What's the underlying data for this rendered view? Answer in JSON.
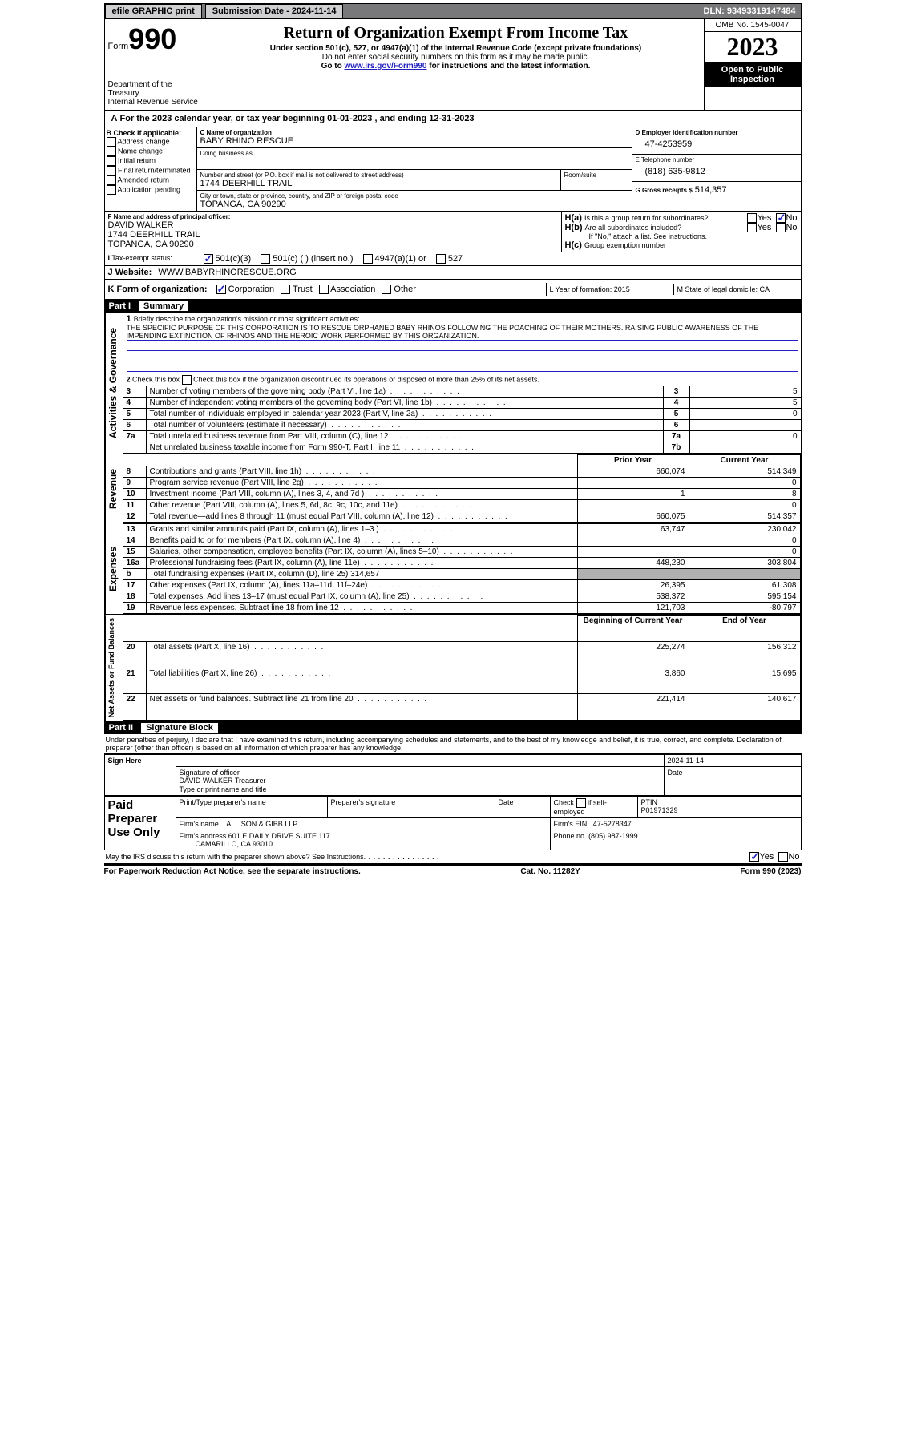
{
  "topbar": {
    "efile": "efile GRAPHIC print",
    "submission": "Submission Date - 2024-11-14",
    "dln": "DLN: 93493319147484"
  },
  "header": {
    "form_label": "Form",
    "form_num": "990",
    "dept": "Department of the Treasury\nInternal Revenue Service",
    "title": "Return of Organization Exempt From Income Tax",
    "sub": "Under section 501(c), 527, or 4947(a)(1) of the Internal Revenue Code (except private foundations)",
    "note": "Do not enter social security numbers on this form as it may be made public.",
    "goto_prefix": "Go to ",
    "goto_link": "www.irs.gov/Form990",
    "goto_suffix": " for instructions and the latest information.",
    "omb": "OMB No. 1545-0047",
    "year": "2023",
    "inspect": "Open to Public Inspection"
  },
  "lineA": {
    "text": "For the 2023 calendar year, or tax year beginning 01-01-2023",
    "mid": ", and ending 12-31-2023"
  },
  "boxB": {
    "title": "B Check if applicable:",
    "opts": [
      "Address change",
      "Name change",
      "Initial return",
      "Final return/terminated",
      "Amended return",
      "Application pending"
    ]
  },
  "boxC": {
    "name_label": "C Name of organization",
    "name": "BABY RHINO RESCUE",
    "dba_label": "Doing business as",
    "street_label": "Number and street (or P.O. box if mail is not delivered to street address)",
    "room_label": "Room/suite",
    "street": "1744 DEERHILL TRAIL",
    "city_label": "City or town, state or province, country, and ZIP or foreign postal code",
    "city": "TOPANGA, CA  90290"
  },
  "boxD": {
    "label": "D Employer identification number",
    "value": "47-4253959"
  },
  "boxE": {
    "label": "E Telephone number",
    "value": "(818) 635-9812"
  },
  "boxG": {
    "label": "G Gross receipts $",
    "value": "514,357"
  },
  "boxF": {
    "label": "F Name and address of principal officer:",
    "name": "DAVID WALKER",
    "street": "1744 DEERHILL TRAIL",
    "city": "TOPANGA, CA  90290"
  },
  "boxH": {
    "a": "Is this a group return for subordinates?",
    "b": "Are all subordinates included?",
    "b_note": "If \"No,\" attach a list. See instructions.",
    "c_label": "Group exemption number",
    "a_no_checked": true
  },
  "boxI": {
    "label": "Tax-exempt status:",
    "opts": [
      "501(c)(3)",
      "501(c) (  ) (insert no.)",
      "4947(a)(1) or",
      "527"
    ],
    "checked": 0
  },
  "boxJ": {
    "label": "Website:",
    "value": "WWW.BABYRHINORESCUE.ORG"
  },
  "boxK": {
    "label": "K Form of organization:",
    "opts": [
      "Corporation",
      "Trust",
      "Association",
      "Other"
    ],
    "checked": 0
  },
  "boxL": {
    "label": "L Year of formation: 2015"
  },
  "boxM": {
    "label": "M State of legal domicile: CA"
  },
  "part1": {
    "label": "Part I",
    "title": "Summary"
  },
  "summary": {
    "l1_label": "Briefly describe the organization's mission or most significant activities:",
    "l1_text": "THE SPECIFIC PURPOSE OF THIS CORPORATION IS TO RESCUE ORPHANED BABY RHINOS FOLLOWING THE POACHING OF THEIR MOTHERS. RAISING PUBLIC AWARENESS OF THE IMPENDING EXTINCTION OF RHINOS AND THE HEROIC WORK PERFORMED BY THIS ORGANIZATION.",
    "l2": "Check this box      if the organization discontinued its operations or disposed of more than 25% of its net assets.",
    "lines_gov": [
      {
        "n": "3",
        "d": "Number of voting members of the governing body (Part VI, line 1a)",
        "box": "3",
        "v": "5"
      },
      {
        "n": "4",
        "d": "Number of independent voting members of the governing body (Part VI, line 1b)",
        "box": "4",
        "v": "5"
      },
      {
        "n": "5",
        "d": "Total number of individuals employed in calendar year 2023 (Part V, line 2a)",
        "box": "5",
        "v": "0"
      },
      {
        "n": "6",
        "d": "Total number of volunteers (estimate if necessary)",
        "box": "6",
        "v": ""
      },
      {
        "n": "7a",
        "d": "Total unrelated business revenue from Part VIII, column (C), line 12",
        "box": "7a",
        "v": "0"
      },
      {
        "n": "",
        "d": "Net unrelated business taxable income from Form 990-T, Part I, line 11",
        "box": "7b",
        "v": ""
      }
    ],
    "col_headers": {
      "prior": "Prior Year",
      "current": "Current Year"
    },
    "revenue": [
      {
        "n": "8",
        "d": "Contributions and grants (Part VIII, line 1h)",
        "p": "660,074",
        "c": "514,349"
      },
      {
        "n": "9",
        "d": "Program service revenue (Part VIII, line 2g)",
        "p": "",
        "c": "0"
      },
      {
        "n": "10",
        "d": "Investment income (Part VIII, column (A), lines 3, 4, and 7d )",
        "p": "1",
        "c": "8"
      },
      {
        "n": "11",
        "d": "Other revenue (Part VIII, column (A), lines 5, 6d, 8c, 9c, 10c, and 11e)",
        "p": "",
        "c": "0"
      },
      {
        "n": "12",
        "d": "Total revenue—add lines 8 through 11 (must equal Part VIII, column (A), line 12)",
        "p": "660,075",
        "c": "514,357"
      }
    ],
    "expenses": [
      {
        "n": "13",
        "d": "Grants and similar amounts paid (Part IX, column (A), lines 1–3 )",
        "p": "63,747",
        "c": "230,042"
      },
      {
        "n": "14",
        "d": "Benefits paid to or for members (Part IX, column (A), line 4)",
        "p": "",
        "c": "0"
      },
      {
        "n": "15",
        "d": "Salaries, other compensation, employee benefits (Part IX, column (A), lines 5–10)",
        "p": "",
        "c": "0"
      },
      {
        "n": "16a",
        "d": "Professional fundraising fees (Part IX, column (A), line 11e)",
        "p": "448,230",
        "c": "303,804"
      },
      {
        "n": "b",
        "d": "Total fundraising expenses (Part IX, column (D), line 25) 314,657",
        "p": "SHADE",
        "c": "SHADE"
      },
      {
        "n": "17",
        "d": "Other expenses (Part IX, column (A), lines 11a–11d, 11f–24e)",
        "p": "26,395",
        "c": "61,308"
      },
      {
        "n": "18",
        "d": "Total expenses. Add lines 13–17 (must equal Part IX, column (A), line 25)",
        "p": "538,372",
        "c": "595,154"
      },
      {
        "n": "19",
        "d": "Revenue less expenses. Subtract line 18 from line 12",
        "p": "121,703",
        "c": "-80,797"
      }
    ],
    "net_headers": {
      "begin": "Beginning of Current Year",
      "end": "End of Year"
    },
    "net": [
      {
        "n": "20",
        "d": "Total assets (Part X, line 16)",
        "p": "225,274",
        "c": "156,312"
      },
      {
        "n": "21",
        "d": "Total liabilities (Part X, line 26)",
        "p": "3,860",
        "c": "15,695"
      },
      {
        "n": "22",
        "d": "Net assets or fund balances. Subtract line 21 from line 20",
        "p": "221,414",
        "c": "140,617"
      }
    ],
    "vert_gov": "Activities & Governance",
    "vert_rev": "Revenue",
    "vert_exp": "Expenses",
    "vert_net": "Net Assets or Fund Balances"
  },
  "part2": {
    "label": "Part II",
    "title": "Signature Block"
  },
  "perjury": "Under penalties of perjury, I declare that I have examined this return, including accompanying schedules and statements, and to the best of my knowledge and belief, it is true, correct, and complete. Declaration of preparer (other than officer) is based on all information of which preparer has any knowledge.",
  "sign": {
    "here": "Sign Here",
    "sig_officer": "Signature of officer",
    "officer": "DAVID WALKER  Treasurer",
    "type_label": "Type or print name and title",
    "date_label": "Date",
    "date": "2024-11-14"
  },
  "paid": {
    "label": "Paid Preparer Use Only",
    "print_label": "Print/Type preparer's name",
    "sig_label": "Preparer's signature",
    "date_label": "Date",
    "check_label": "Check         if self-employed",
    "ptin_label": "PTIN",
    "ptin": "P01971329",
    "firm_name_label": "Firm's name",
    "firm_name": "ALLISON & GIBB LLP",
    "firm_ein_label": "Firm's EIN",
    "firm_ein": "47-5278347",
    "firm_addr_label": "Firm's address",
    "firm_addr": "601 E DAILY DRIVE SUITE 117",
    "firm_city": "CAMARILLO, CA  93010",
    "phone_label": "Phone no.",
    "phone": "(805) 987-1999"
  },
  "discuss": "May the IRS discuss this return with the preparer shown above? See Instructions.",
  "footer": {
    "left": "For Paperwork Reduction Act Notice, see the separate instructions.",
    "mid": "Cat. No. 11282Y",
    "right": "Form 990 (2023)"
  }
}
